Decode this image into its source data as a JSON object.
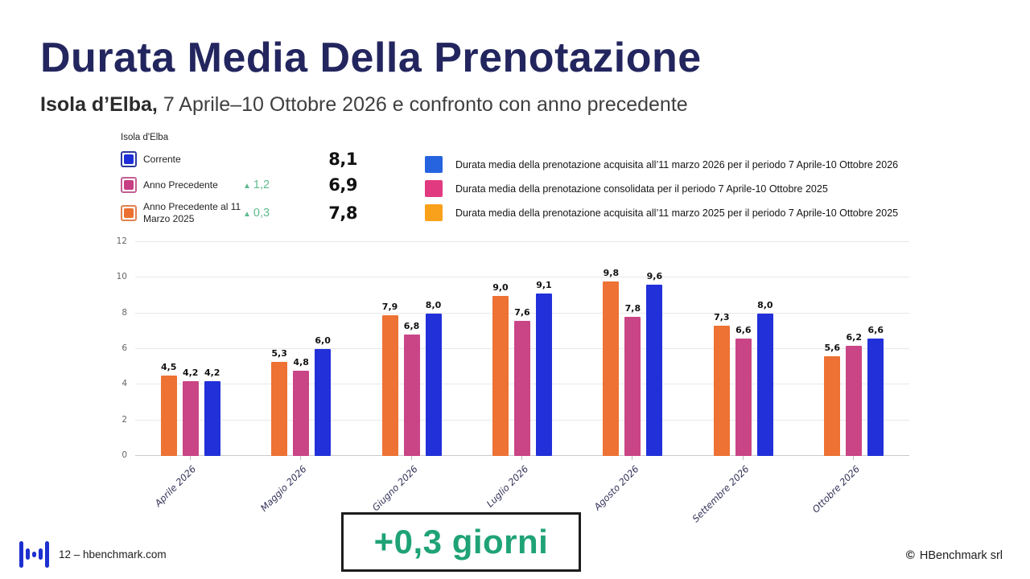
{
  "slide": {
    "title": "Durata Media Della Prenotazione",
    "subtitle_bold": "Isola d’Elba,",
    "subtitle_rest": " 7 Aprile–10 Ottobre 2026 e confronto con anno precedente"
  },
  "stats": {
    "header": "Isola d'Elba",
    "rows": [
      {
        "label": "Corrente",
        "delta": "",
        "value": "8,1",
        "color_key": "blue"
      },
      {
        "label": "Anno Precedente",
        "delta": "1,2",
        "value": "6,9",
        "color_key": "pink"
      },
      {
        "label": "Anno Precedente al 11 Marzo 2025",
        "delta": "0,3",
        "value": "7,8",
        "color_key": "orange"
      }
    ],
    "delta_triangle": "▲"
  },
  "legend": {
    "items": [
      {
        "text": "Durata media della prenotazione  acquisita all’11  marzo 2026 per il periodo 7 Aprile-10 Ottobre 2026",
        "color": "#2563df"
      },
      {
        "text": "Durata media della prenotazione  consolidata per il periodo 7 Aprile-10 Ottobre 2025",
        "color": "#e23a80"
      },
      {
        "text": "Durata media della prenotazione acquisita all’11 marzo 2025 per il periodo 7 Aprile-10 Ottobre 2025",
        "color": "#f9a11b"
      }
    ]
  },
  "chart_data": {
    "type": "bar",
    "title": "Durata Media Della Prenotazione - Isola d'Elba",
    "categories": [
      "Aprile 2026",
      "Maggio 2026",
      "Giugno 2026",
      "Luglio 2026",
      "Agosto 2026",
      "Settembre 2026",
      "Ottobre 2026"
    ],
    "series": [
      {
        "name": "Anno Precedente al 11 Marzo 2025",
        "color": "#ed7234",
        "values": [
          4.5,
          5.3,
          7.9,
          9.0,
          9.8,
          7.3,
          5.6
        ],
        "labels": [
          "4,5",
          "5,3",
          "7,9",
          "9,0",
          "9,8",
          "7,3",
          "5,6"
        ]
      },
      {
        "name": "Anno Precedente",
        "color": "#c94586",
        "values": [
          4.2,
          4.8,
          6.8,
          7.6,
          7.8,
          6.6,
          6.2
        ],
        "labels": [
          "4,2",
          "4,8",
          "6,8",
          "7,6",
          "7,8",
          "6,6",
          "6,2"
        ]
      },
      {
        "name": "Corrente",
        "color": "#2130d9",
        "values": [
          4.2,
          6.0,
          8.0,
          9.1,
          9.6,
          8.0,
          6.6
        ],
        "labels": [
          "4,2",
          "6,0",
          "8,0",
          "9,1",
          "9,6",
          "8,0",
          "6,6"
        ]
      }
    ],
    "xlabel": "",
    "ylabel": "",
    "ylim": [
      0,
      12
    ],
    "yticks": [
      0,
      2,
      4,
      6,
      8,
      10,
      12
    ],
    "grid": true,
    "legend_position": "top-right"
  },
  "highlight": {
    "text": "+0,3 giorni"
  },
  "footer": {
    "left": "12 – hbenchmark.com",
    "copyright_symbol": "©",
    "right": "HBenchmark srl"
  },
  "colors": {
    "title_navy": "#23265e",
    "green_text": "#1fa376",
    "delta_green": "#5fba8c",
    "bar_orange": "#ed7234",
    "bar_pink": "#c94586",
    "bar_blue": "#2130d9",
    "logo_blue": "#1d2fd0",
    "framed_swatches": {
      "blue": {
        "border": "#2b3a9e",
        "fill": "#1e2fd8"
      },
      "pink": {
        "border": "#c45e95",
        "fill": "#c73e84"
      },
      "orange": {
        "border": "#e2814f",
        "fill": "#ec7130"
      }
    }
  }
}
